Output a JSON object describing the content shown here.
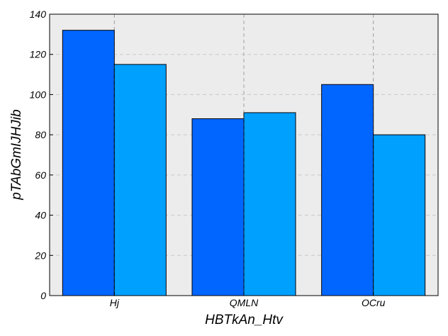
{
  "chart_data": {
    "type": "bar",
    "title": "",
    "xlabel": "HBTkAn_Htv",
    "ylabel": "pTAbGmIJHJib",
    "categories": [
      "Hj",
      "QMLN",
      "OCru"
    ],
    "series": [
      {
        "values": [
          132,
          88,
          105
        ],
        "color": "#0066ff"
      },
      {
        "values": [
          115,
          91,
          80
        ],
        "color": "#00a0ff"
      }
    ],
    "ylim": [
      0,
      140
    ],
    "yticks": [
      0,
      20,
      40,
      60,
      80,
      100,
      120,
      140
    ],
    "grid": true,
    "legend": "none",
    "background": "#ececec"
  }
}
